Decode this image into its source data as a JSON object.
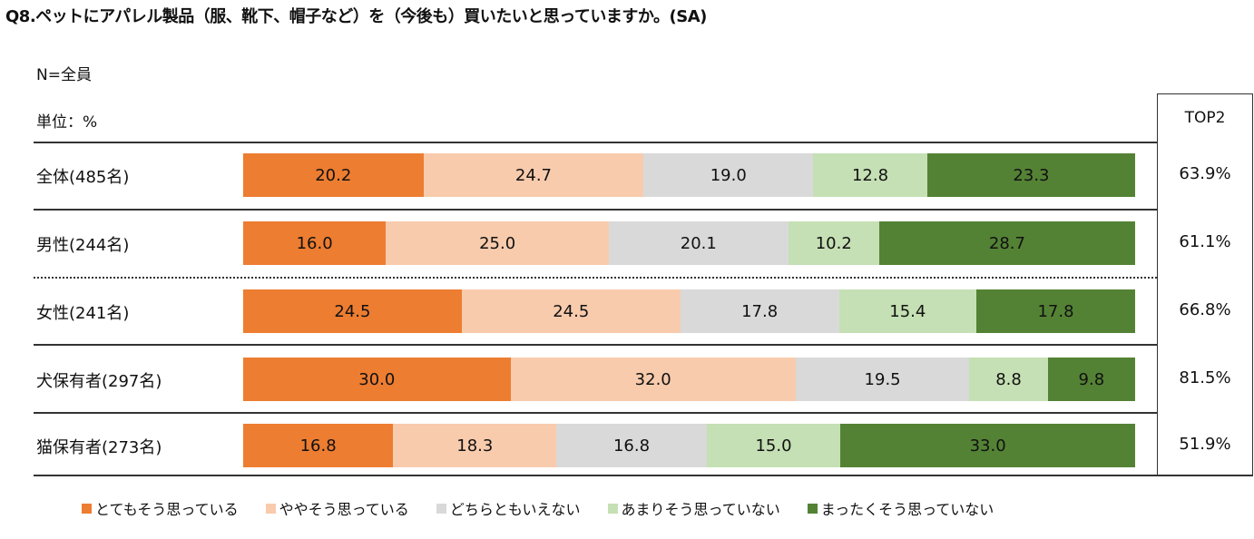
{
  "title": "Q8.ペットにアパレル製品（服、靴下、帽子など）を（今後も）買いたいと思っていますか。(SA)",
  "base": "N=全員",
  "unit": "単位：%",
  "top2_header": "TOP2",
  "chart_data": {
    "type": "bar",
    "stacked": true,
    "orientation": "horizontal",
    "xlim": [
      0,
      100
    ],
    "categories": [
      "全体(485名)",
      "男性(244名)",
      "女性(241名)",
      "犬保有者(297名)",
      "猫保有者(273名)"
    ],
    "series": [
      {
        "name": "とてもそう思っている",
        "color": "#ED7D31",
        "values": [
          20.2,
          16.0,
          24.5,
          30.0,
          16.8
        ]
      },
      {
        "name": "ややそう思っている",
        "color": "#F8CBAD",
        "values": [
          24.7,
          25.0,
          24.5,
          32.0,
          18.3
        ]
      },
      {
        "name": "どちらともいえない",
        "color": "#D9D9D9",
        "values": [
          19.0,
          20.1,
          17.8,
          19.5,
          16.8
        ]
      },
      {
        "name": "あまりそう思っていない",
        "color": "#C5E0B4",
        "values": [
          12.8,
          10.2,
          15.4,
          8.8,
          15.0
        ]
      },
      {
        "name": "まったくそう思っていない",
        "color": "#548235",
        "values": [
          23.3,
          28.7,
          17.8,
          9.8,
          33.0
        ]
      }
    ],
    "top2": [
      "63.9%",
      "61.1%",
      "66.8%",
      "81.5%",
      "51.9%"
    ],
    "legend": "bottom"
  }
}
